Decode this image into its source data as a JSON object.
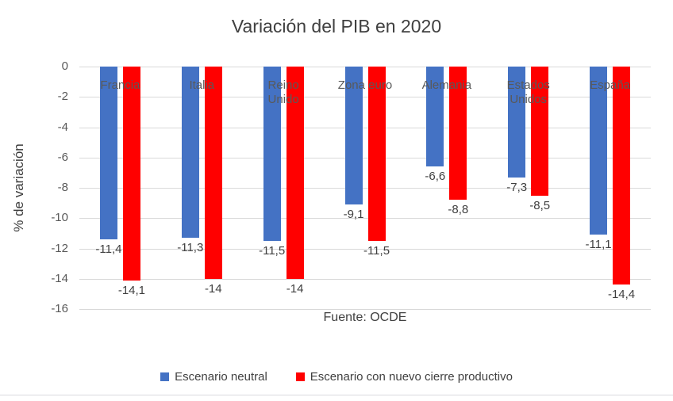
{
  "chart_data": {
    "type": "bar",
    "title": "Variación del PIB en 2020",
    "ylabel": "% de variación",
    "xlabel": "Fuente: OCDE",
    "categories": [
      "Francia",
      "Italia",
      "Reino Unido",
      "Zona euro",
      "Alemania",
      "Estados Unidos",
      "España"
    ],
    "series": [
      {
        "name": "Escenario neutral",
        "color": "#4472C4",
        "values": [
          -11.4,
          -11.3,
          -11.5,
          -9.1,
          -6.6,
          -7.3,
          -11.1
        ],
        "labels": [
          "-11,4",
          "-11,3",
          "-11,5",
          "-9,1",
          "-6,6",
          "-7,3",
          "-11,1"
        ]
      },
      {
        "name": "Escenario con nuevo cierre productivo",
        "color": "#FF0000",
        "values": [
          -14.1,
          -14,
          -14,
          -11.5,
          -8.8,
          -8.5,
          -14.4
        ],
        "labels": [
          "-14,1",
          "-14",
          "-14",
          "-11,5",
          "-8,8",
          "-8,5",
          "-14,4"
        ]
      }
    ],
    "ylim": [
      -16,
      0
    ],
    "yticks": [
      0,
      -2,
      -4,
      -6,
      -8,
      -10,
      -12,
      -14,
      -16
    ],
    "grid": true,
    "legend_position": "bottom"
  }
}
